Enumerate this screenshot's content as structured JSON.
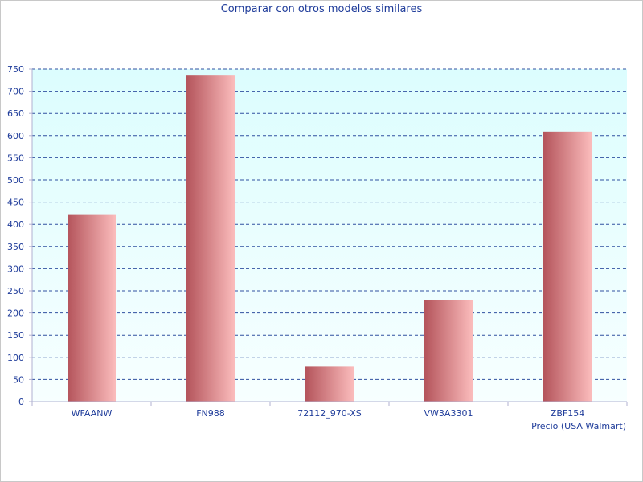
{
  "chart_data": {
    "type": "bar",
    "title": "Comparar con otros modelos similares",
    "xlabel": "Precio (USA Walmart)",
    "ylabel": "",
    "categories": [
      "WFAANW",
      "FN988",
      "72112_970-XS",
      "VW3A3301",
      "ZBF154"
    ],
    "values": [
      421,
      737,
      79,
      229,
      609
    ],
    "ylim": [
      0,
      750
    ],
    "yticks": [
      0,
      50,
      100,
      150,
      200,
      250,
      300,
      350,
      400,
      450,
      500,
      550,
      600,
      650,
      700,
      750
    ],
    "grid": true,
    "colors": {
      "plot_background_top": "#dcfdfe",
      "plot_background_bottom": "#f7ffff",
      "bar_dark": "#b4545b",
      "bar_light": "#fbbcbc",
      "grid": "#3050a0",
      "text": "#1f3c9a",
      "axis": "#b0b0d0"
    }
  }
}
